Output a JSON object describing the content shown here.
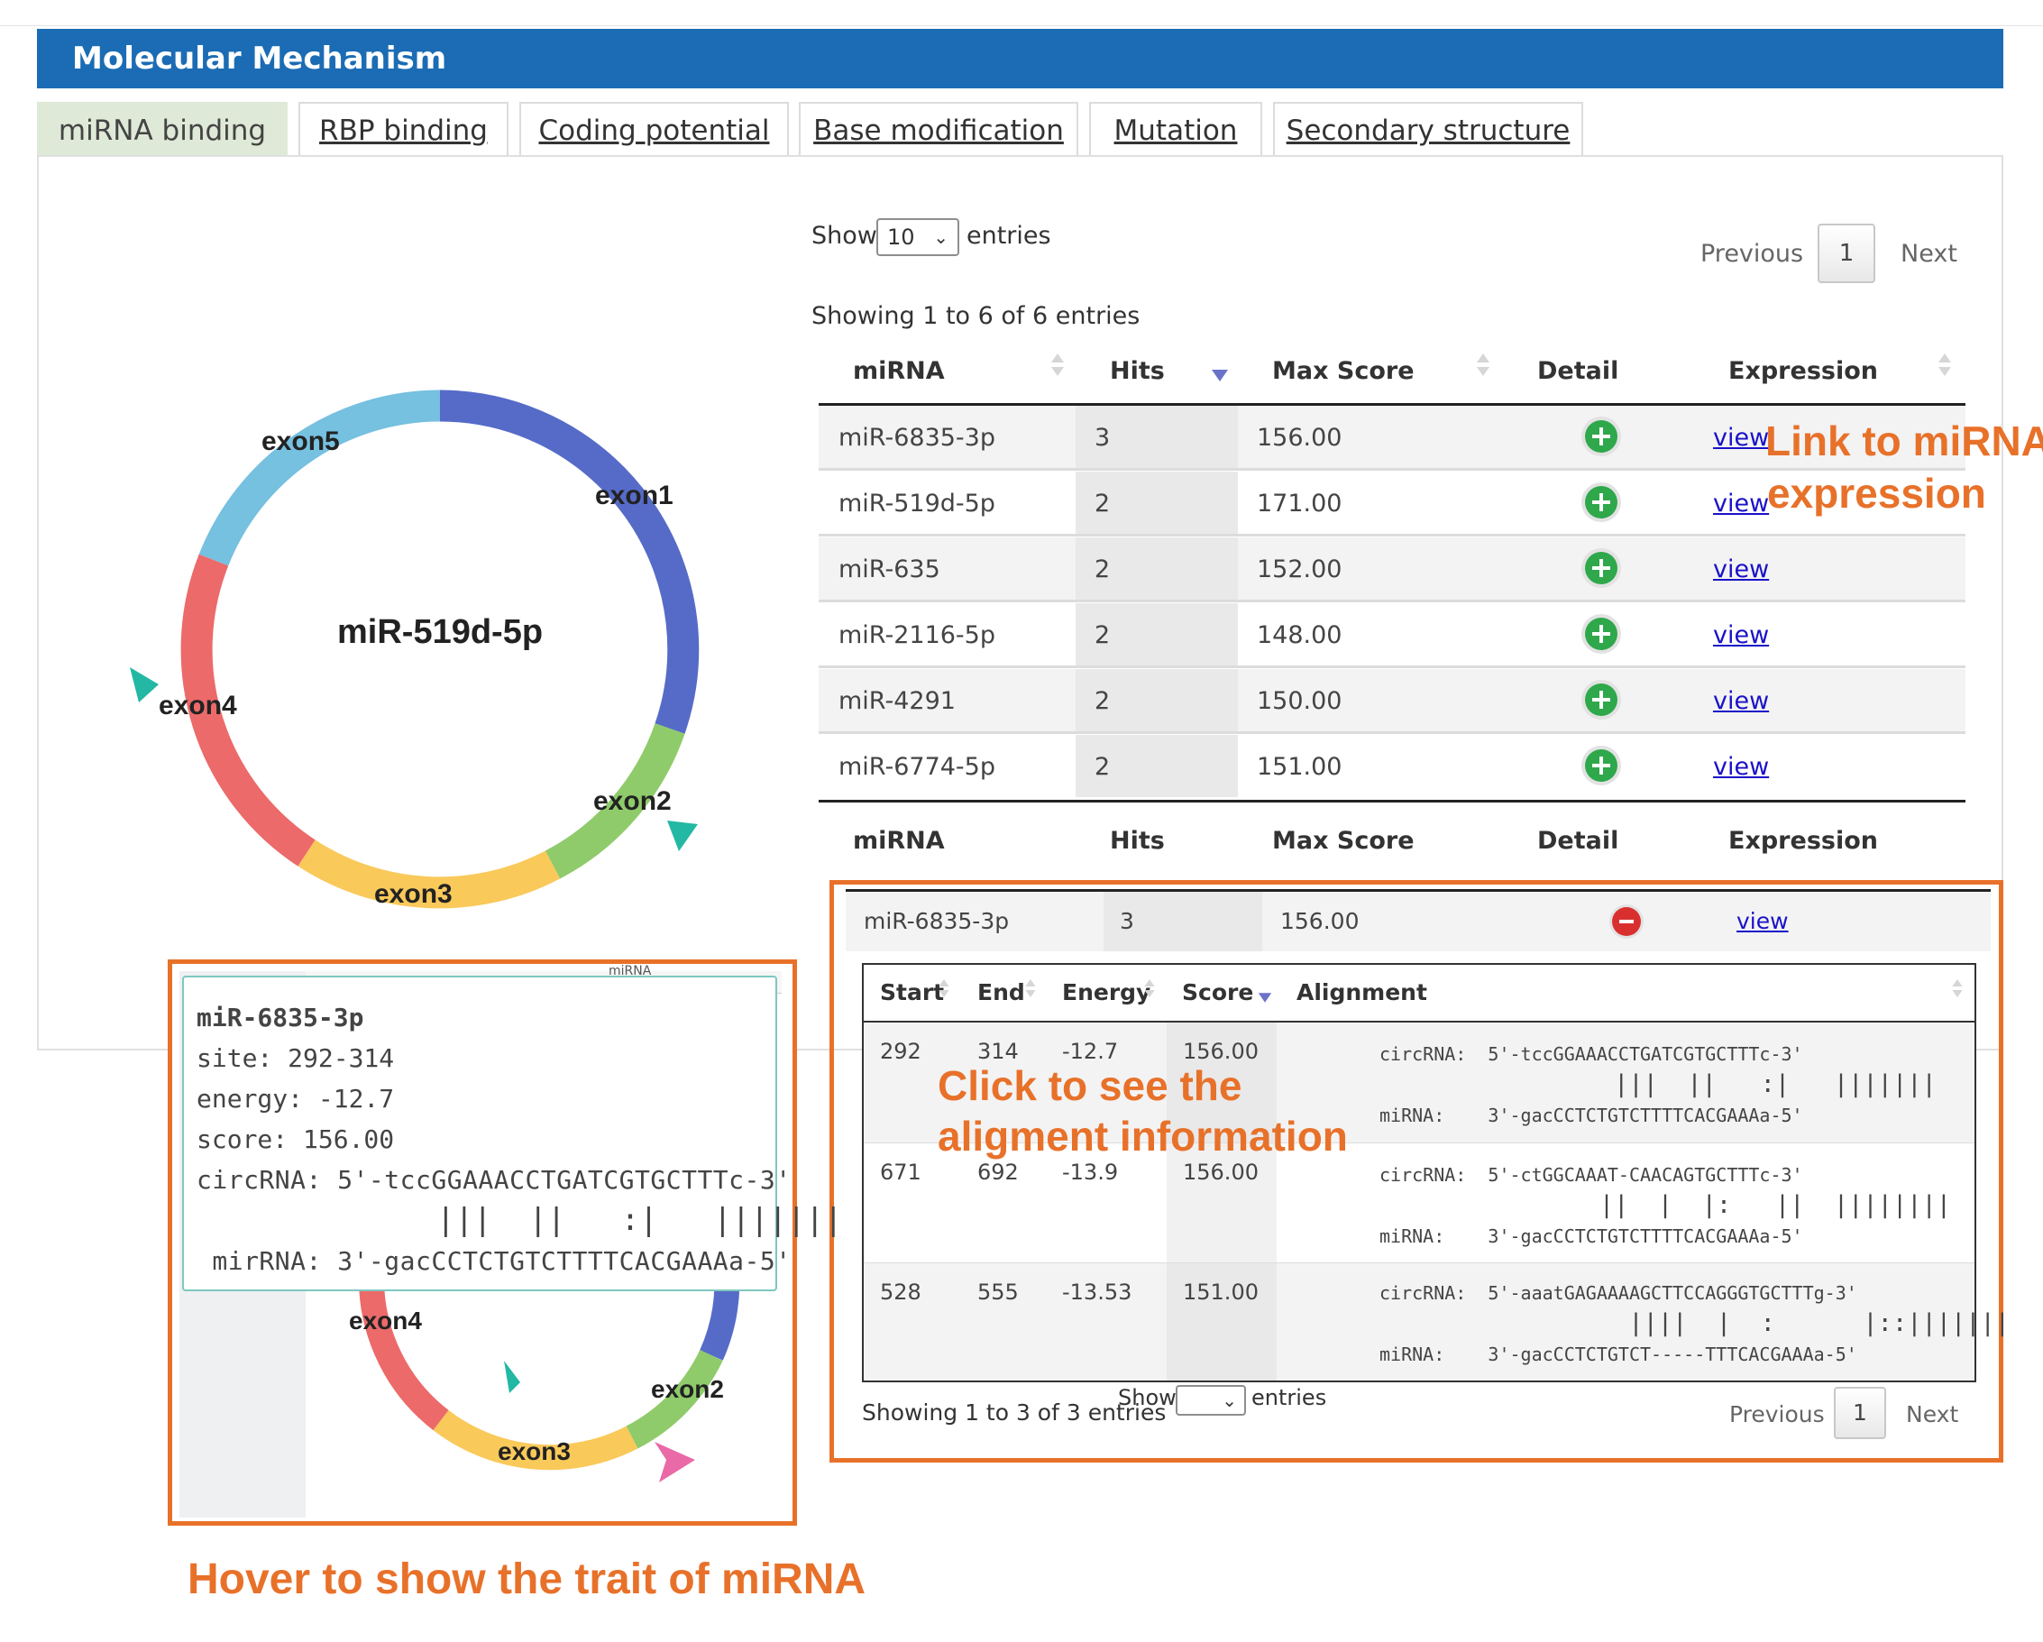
{
  "header": {
    "title": "Molecular Mechanism"
  },
  "tabs": [
    {
      "label": "miRNA binding",
      "active": true
    },
    {
      "label": "RBP binding"
    },
    {
      "label": "Coding potential"
    },
    {
      "label": "Base modification"
    },
    {
      "label": "Mutation"
    },
    {
      "label": "Secondary structure"
    }
  ],
  "circle_plot": {
    "center_label": "miR-519d-5p",
    "exons": [
      {
        "label": "exon1",
        "color": "#566bc8"
      },
      {
        "label": "exon2",
        "color": "#8fcb6a"
      },
      {
        "label": "exon3",
        "color": "#f9c95a"
      },
      {
        "label": "exon4",
        "color": "#ec6a6a"
      },
      {
        "label": "exon5",
        "color": "#76c0e0"
      }
    ]
  },
  "mirna_table": {
    "show_label": "Show",
    "entries_label": "entries",
    "page_size": "10",
    "info": "Showing 1 to 6 of 6 entries",
    "prev": "Previous",
    "next": "Next",
    "page": "1",
    "columns": [
      "miRNA",
      "Hits",
      "Max Score",
      "Detail",
      "Expression"
    ],
    "rows": [
      {
        "mirna": "miR-6835-3p",
        "hits": "3",
        "max_score": "156.00",
        "expression": "view"
      },
      {
        "mirna": "miR-519d-5p",
        "hits": "2",
        "max_score": "171.00",
        "expression": "view"
      },
      {
        "mirna": "miR-635",
        "hits": "2",
        "max_score": "152.00",
        "expression": "view"
      },
      {
        "mirna": "miR-2116-5p",
        "hits": "2",
        "max_score": "148.00",
        "expression": "view"
      },
      {
        "mirna": "miR-4291",
        "hits": "2",
        "max_score": "150.00",
        "expression": "view"
      },
      {
        "mirna": "miR-6774-5p",
        "hits": "2",
        "max_score": "151.00",
        "expression": "view"
      }
    ],
    "footer_columns": [
      "miRNA",
      "Hits",
      "Max Score",
      "Detail",
      "Expression"
    ]
  },
  "detail": {
    "row": {
      "mirna": "miR-6835-3p",
      "hits": "3",
      "max_score": "156.00",
      "expression": "view"
    },
    "columns": [
      "Start",
      "End",
      "Energy",
      "Score",
      "Alignment"
    ],
    "rows": [
      {
        "start": "292",
        "end": "314",
        "energy": "-12.7",
        "score": "156.00",
        "align": [
          "circRNA:  5'-tccGGAAACCTGATCGTGCTTTc-3'",
          "                |||  ||   :|   |||||||",
          "miRNA:    3'-gacCCTCTGTCTTTTCACGAAAa-5'"
        ]
      },
      {
        "start": "671",
        "end": "692",
        "energy": "-13.9",
        "score": "156.00",
        "align": [
          "circRNA:  5'-ctGGCAAAT-CAACAGTGCTTTc-3'",
          "               ||  |  |:   ||  ||||||||",
          "miRNA:    3'-gacCCTCTGTCTTTTCACGAAAa-5'"
        ]
      },
      {
        "start": "528",
        "end": "555",
        "energy": "-13.53",
        "score": "151.00",
        "align": [
          "circRNA:  5'-aaatGAGAAAAGCTTCCAGGGTGCTTTg-3'",
          "                 ||||  |  :      |::|||||||",
          "miRNA:    3'-gacCCTCTGTCT-----TTTCACGAAAa-5'"
        ]
      }
    ],
    "info": "Showing 1 to 3 of 3 entries",
    "show_label": "Show",
    "entries_label": "entries",
    "prev": "Previous",
    "next": "Next",
    "page": "1"
  },
  "tooltip": {
    "lines": [
      "miR-6835-3p",
      "site: 292-314",
      "energy: -12.7",
      "score: 156.00",
      "circRNA: 5'-tccGGAAACCTGATCGTGCTTTc-3'",
      "             |||  ||   :|   |||||||",
      " mirRNA: 3'-gacCCTCTGTCTTTTCACGAAAa-5'"
    ],
    "partial_label": "miRNA",
    "mini_exons": [
      "exon4",
      "exon2",
      "exon3"
    ]
  },
  "annotations": {
    "link_expression": [
      "Link to miRNA",
      "expression"
    ],
    "click_alignment": [
      "Click to see the",
      "aligment information"
    ],
    "hover": "Hover to show the trait of miRNA"
  },
  "colors": {
    "header_bg": "#1b6cb4",
    "annotation": "#e8712a",
    "active_tab": "#dfe9d7"
  }
}
